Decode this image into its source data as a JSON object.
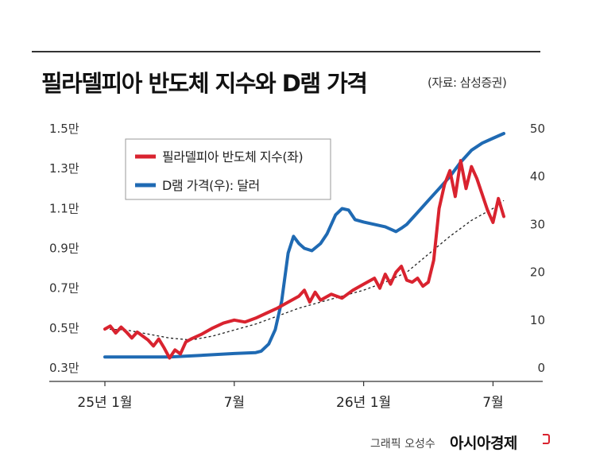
{
  "chart_data": {
    "type": "line",
    "title": "필라델피아 반도체 지수와 D램 가격",
    "source": "(자료: 삼성증권)",
    "x_ticks": [
      "25년 1월",
      "7월",
      "26년 1월",
      "7월"
    ],
    "y_left": {
      "ticks": [
        "0.3만",
        "0.5만",
        "0.7만",
        "0.9만",
        "1.1만",
        "1.3만",
        "1.5만"
      ],
      "range": [
        3000,
        15000
      ]
    },
    "y_right": {
      "ticks": [
        "0",
        "10",
        "20",
        "30",
        "40",
        "50"
      ],
      "range": [
        0,
        50
      ]
    },
    "legend_position": "top-left",
    "grid": false,
    "series": [
      {
        "name": "필라델피아 반도체 지수(좌)",
        "axis": "left",
        "color": "#d9232f",
        "points": [
          [
            0,
            4950
          ],
          [
            0.25,
            5100
          ],
          [
            0.5,
            4750
          ],
          [
            0.75,
            5050
          ],
          [
            1,
            4800
          ],
          [
            1.25,
            4500
          ],
          [
            1.5,
            4800
          ],
          [
            2,
            4400
          ],
          [
            2.25,
            4100
          ],
          [
            2.5,
            4450
          ],
          [
            2.75,
            4000
          ],
          [
            3,
            3500
          ],
          [
            3.25,
            3900
          ],
          [
            3.5,
            3700
          ],
          [
            3.75,
            4300
          ],
          [
            4,
            4450
          ],
          [
            4.5,
            4700
          ],
          [
            5,
            5000
          ],
          [
            5.5,
            5250
          ],
          [
            6,
            5400
          ],
          [
            6.5,
            5300
          ],
          [
            7,
            5500
          ],
          [
            7.5,
            5750
          ],
          [
            8,
            6000
          ],
          [
            8.5,
            6300
          ],
          [
            9,
            6600
          ],
          [
            9.25,
            6900
          ],
          [
            9.5,
            6300
          ],
          [
            9.75,
            6800
          ],
          [
            10,
            6400
          ],
          [
            10.5,
            6700
          ],
          [
            11,
            6500
          ],
          [
            11.5,
            6900
          ],
          [
            12,
            7200
          ],
          [
            12.5,
            7500
          ],
          [
            12.75,
            7000
          ],
          [
            13,
            7700
          ],
          [
            13.25,
            7200
          ],
          [
            13.5,
            7800
          ],
          [
            13.75,
            8100
          ],
          [
            14,
            7400
          ],
          [
            14.25,
            7300
          ],
          [
            14.5,
            7500
          ],
          [
            14.75,
            7100
          ],
          [
            15,
            7300
          ],
          [
            15.25,
            8400
          ],
          [
            15.5,
            11000
          ],
          [
            15.75,
            12200
          ],
          [
            16,
            12900
          ],
          [
            16.25,
            11600
          ],
          [
            16.5,
            13400
          ],
          [
            16.75,
            12000
          ],
          [
            17,
            13100
          ],
          [
            17.25,
            12500
          ],
          [
            17.5,
            11700
          ],
          [
            17.75,
            10900
          ],
          [
            18,
            10300
          ],
          [
            18.25,
            11500
          ],
          [
            18.5,
            10600
          ]
        ]
      },
      {
        "name": "D램 가격(우): 달러",
        "axis": "right",
        "color": "#1f6ab3",
        "points": [
          [
            0,
            2.3
          ],
          [
            3,
            2.3
          ],
          [
            4,
            2.5
          ],
          [
            6,
            3.0
          ],
          [
            7,
            3.2
          ],
          [
            7.25,
            3.5
          ],
          [
            7.6,
            5.0
          ],
          [
            7.9,
            8.0
          ],
          [
            8.2,
            14.0
          ],
          [
            8.5,
            24.0
          ],
          [
            8.75,
            27.5
          ],
          [
            9,
            26.0
          ],
          [
            9.25,
            25.0
          ],
          [
            9.6,
            24.5
          ],
          [
            10,
            26.0
          ],
          [
            10.3,
            28.0
          ],
          [
            10.7,
            32.0
          ],
          [
            11,
            33.3
          ],
          [
            11.3,
            33.0
          ],
          [
            11.6,
            31.0
          ],
          [
            12,
            30.5
          ],
          [
            12.5,
            30.0
          ],
          [
            13,
            29.5
          ],
          [
            13.5,
            28.5
          ],
          [
            13.75,
            29.2
          ],
          [
            14,
            30.0
          ],
          [
            14.5,
            32.5
          ],
          [
            15,
            35.0
          ],
          [
            15.5,
            37.5
          ],
          [
            16,
            40.0
          ],
          [
            16.5,
            43.0
          ],
          [
            17,
            45.5
          ],
          [
            17.5,
            47.0
          ],
          [
            18,
            48.0
          ],
          [
            18.5,
            49.0
          ]
        ]
      }
    ],
    "trend_line": {
      "axis": "left",
      "color": "#222222",
      "points": [
        [
          0,
          4950
        ],
        [
          1,
          4900
        ],
        [
          2,
          4700
        ],
        [
          3,
          4500
        ],
        [
          4,
          4400
        ],
        [
          5,
          4600
        ],
        [
          6,
          4900
        ],
        [
          7,
          5200
        ],
        [
          8,
          5600
        ],
        [
          9,
          6000
        ],
        [
          10,
          6300
        ],
        [
          11,
          6600
        ],
        [
          12,
          6900
        ],
        [
          13,
          7300
        ],
        [
          14,
          7800
        ],
        [
          15,
          8700
        ],
        [
          16,
          9600
        ],
        [
          17,
          10400
        ],
        [
          18,
          11000
        ],
        [
          18.5,
          11400
        ]
      ]
    }
  },
  "footer": {
    "credit": "그래픽 오성수",
    "logo": "아시아경제"
  }
}
